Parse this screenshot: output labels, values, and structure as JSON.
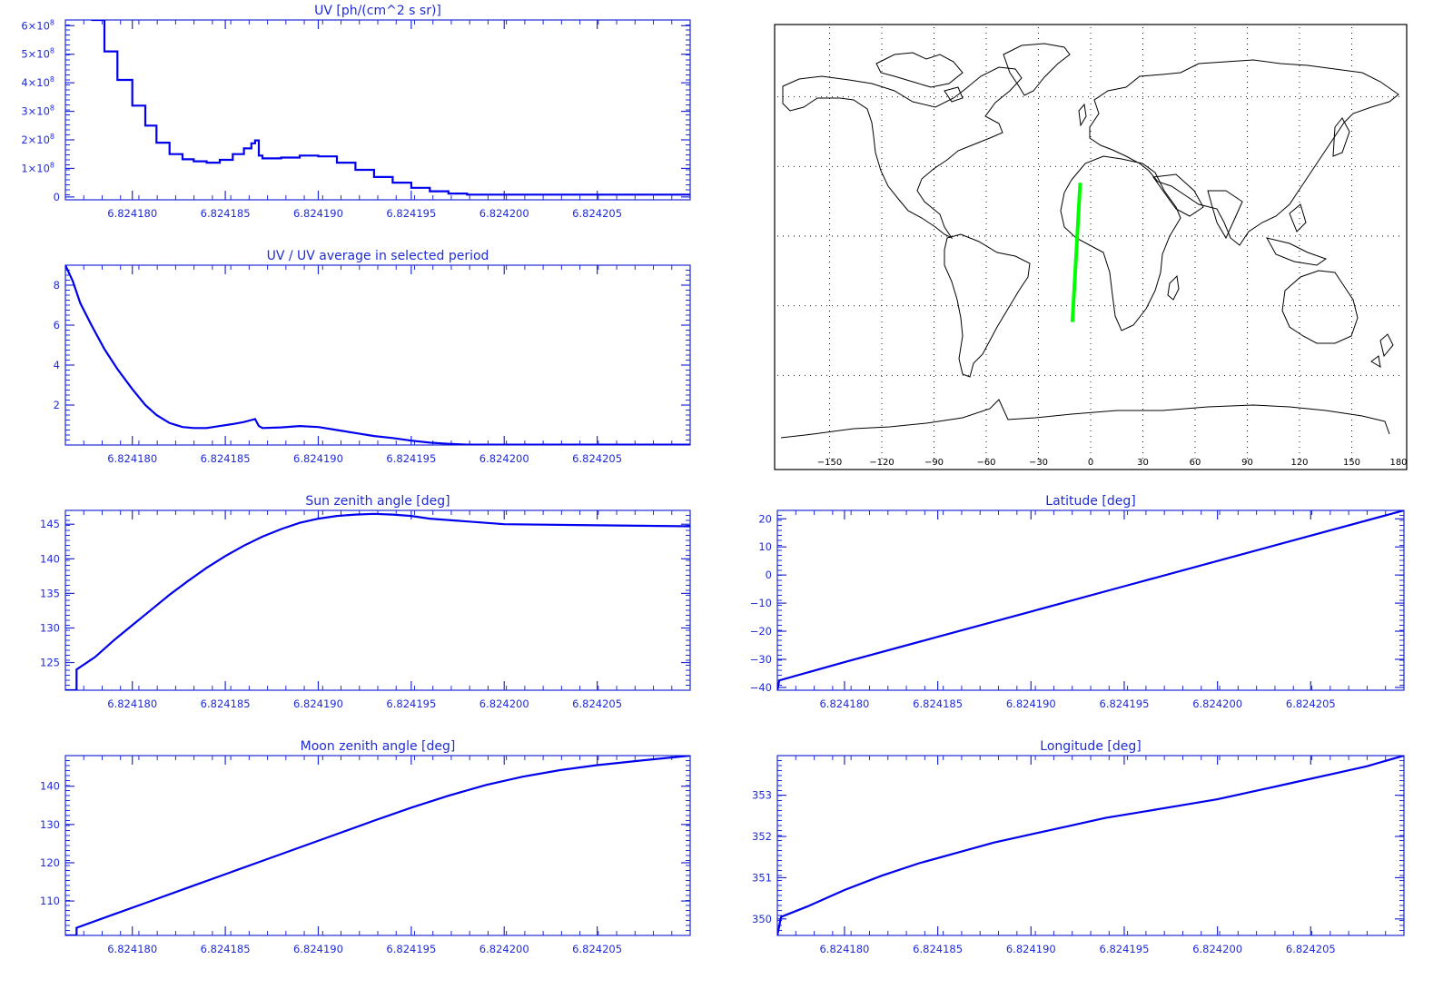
{
  "colors": {
    "axis": "#1f2bd8",
    "line": "#0000ee",
    "track": "#00ff00",
    "coast": "#000000"
  },
  "chart_data": [
    {
      "type": "line",
      "title": "UV [ph/(cm^2 s sr)]",
      "x_ticks": [
        "6.824180",
        "6.824185",
        "6.824190",
        "6.824195",
        "6.824200",
        "6.824205"
      ],
      "xlim": [
        6.8241764,
        6.82421
      ],
      "ylim": [
        -0.1,
        6.2
      ],
      "y_ticks": [
        {
          "v": 0,
          "base": "0"
        },
        {
          "v": 1,
          "base": "1×10",
          "exp": "8"
        },
        {
          "v": 2,
          "base": "2×10",
          "exp": "8"
        },
        {
          "v": 3,
          "base": "3×10",
          "exp": "8"
        },
        {
          "v": 4,
          "base": "4×10",
          "exp": "8"
        },
        {
          "v": 5,
          "base": "5×10",
          "exp": "8"
        },
        {
          "v": 6,
          "base": "6×10",
          "exp": "8"
        }
      ],
      "step": true,
      "points": [
        [
          6.8241778,
          6.2
        ],
        [
          6.8241785,
          5.1
        ],
        [
          6.8241792,
          4.1
        ],
        [
          6.82418,
          3.2
        ],
        [
          6.8241807,
          2.5
        ],
        [
          6.8241813,
          1.9
        ],
        [
          6.824182,
          1.5
        ],
        [
          6.8241827,
          1.32
        ],
        [
          6.8241833,
          1.25
        ],
        [
          6.824184,
          1.2
        ],
        [
          6.8241847,
          1.3
        ],
        [
          6.8241854,
          1.5
        ],
        [
          6.824186,
          1.7
        ],
        [
          6.8241864,
          1.88
        ],
        [
          6.8241866,
          1.98
        ],
        [
          6.8241868,
          1.45
        ],
        [
          6.824187,
          1.35
        ],
        [
          6.824188,
          1.38
        ],
        [
          6.824189,
          1.45
        ],
        [
          6.82419,
          1.42
        ],
        [
          6.824191,
          1.2
        ],
        [
          6.824192,
          0.95
        ],
        [
          6.824193,
          0.7
        ],
        [
          6.824194,
          0.5
        ],
        [
          6.824195,
          0.32
        ],
        [
          6.824196,
          0.2
        ],
        [
          6.824197,
          0.12
        ],
        [
          6.824198,
          0.08
        ],
        [
          6.824199,
          0.08
        ],
        [
          6.8242,
          0.08
        ],
        [
          6.82421,
          0.08
        ]
      ]
    },
    {
      "type": "line",
      "title": "UV / UV average in selected period",
      "x_ticks": [
        "6.824180",
        "6.824185",
        "6.824190",
        "6.824195",
        "6.824200",
        "6.824205"
      ],
      "xlim": [
        6.8241764,
        6.82421
      ],
      "ylim": [
        0,
        9
      ],
      "y_ticks": [
        {
          "v": 2,
          "base": "2"
        },
        {
          "v": 4,
          "base": "4"
        },
        {
          "v": 6,
          "base": "6"
        },
        {
          "v": 8,
          "base": "8"
        }
      ],
      "step": false,
      "points": [
        [
          6.8241764,
          9.0
        ],
        [
          6.8241768,
          8.2
        ],
        [
          6.8241772,
          7.1
        ],
        [
          6.8241778,
          6.0
        ],
        [
          6.8241785,
          4.8
        ],
        [
          6.8241792,
          3.8
        ],
        [
          6.82418,
          2.8
        ],
        [
          6.8241807,
          2.0
        ],
        [
          6.8241813,
          1.5
        ],
        [
          6.824182,
          1.1
        ],
        [
          6.8241827,
          0.9
        ],
        [
          6.8241833,
          0.85
        ],
        [
          6.824184,
          0.85
        ],
        [
          6.8241847,
          0.95
        ],
        [
          6.8241854,
          1.05
        ],
        [
          6.824186,
          1.15
        ],
        [
          6.8241864,
          1.25
        ],
        [
          6.8241866,
          1.3
        ],
        [
          6.8241868,
          0.95
        ],
        [
          6.824187,
          0.85
        ],
        [
          6.824188,
          0.88
        ],
        [
          6.824189,
          0.95
        ],
        [
          6.82419,
          0.9
        ],
        [
          6.824191,
          0.75
        ],
        [
          6.824192,
          0.6
        ],
        [
          6.824193,
          0.45
        ],
        [
          6.824194,
          0.35
        ],
        [
          6.824195,
          0.22
        ],
        [
          6.824196,
          0.12
        ],
        [
          6.824197,
          0.06
        ],
        [
          6.824198,
          0.02
        ],
        [
          6.82421,
          0.02
        ]
      ]
    },
    {
      "type": "line",
      "title": "Sun zenith angle [deg]",
      "x_ticks": [
        "6.824180",
        "6.824185",
        "6.824190",
        "6.824195",
        "6.824200",
        "6.824205"
      ],
      "xlim": [
        6.8241764,
        6.82421
      ],
      "ylim": [
        121,
        147
      ],
      "y_ticks": [
        {
          "v": 125,
          "base": "125"
        },
        {
          "v": 130,
          "base": "130"
        },
        {
          "v": 135,
          "base": "135"
        },
        {
          "v": 140,
          "base": "140"
        },
        {
          "v": 145,
          "base": "145"
        }
      ],
      "step": false,
      "points": [
        [
          6.8241764,
          121.0
        ],
        [
          6.824177,
          121.0
        ],
        [
          6.824177,
          124.0
        ],
        [
          6.824178,
          125.8
        ],
        [
          6.824179,
          128.2
        ],
        [
          6.82418,
          130.4
        ],
        [
          6.824181,
          132.6
        ],
        [
          6.824182,
          134.8
        ],
        [
          6.824183,
          136.8
        ],
        [
          6.824184,
          138.7
        ],
        [
          6.824185,
          140.4
        ],
        [
          6.824186,
          141.9
        ],
        [
          6.824187,
          143.2
        ],
        [
          6.824188,
          144.3
        ],
        [
          6.824189,
          145.2
        ],
        [
          6.82419,
          145.8
        ],
        [
          6.824191,
          146.2
        ],
        [
          6.824192,
          146.4
        ],
        [
          6.824193,
          146.5
        ],
        [
          6.824194,
          146.4
        ],
        [
          6.824195,
          146.2
        ],
        [
          6.824196,
          145.8
        ],
        [
          6.8242,
          145.0
        ],
        [
          6.82421,
          144.7
        ]
      ]
    },
    {
      "type": "line",
      "title": "Latitude [deg]",
      "x_ticks": [
        "6.824180",
        "6.824185",
        "6.824190",
        "6.824195",
        "6.824200",
        "6.824205"
      ],
      "xlim": [
        6.8241764,
        6.82421
      ],
      "ylim": [
        -41,
        23
      ],
      "y_ticks": [
        {
          "v": -40,
          "base": "−40"
        },
        {
          "v": -30,
          "base": "−30"
        },
        {
          "v": -20,
          "base": "−20"
        },
        {
          "v": -10,
          "base": "−10"
        },
        {
          "v": 0,
          "base": "0"
        },
        {
          "v": 10,
          "base": "10"
        },
        {
          "v": 20,
          "base": "20"
        }
      ],
      "step": false,
      "points": [
        [
          6.8241764,
          -41.0
        ],
        [
          6.8241765,
          -37.5
        ],
        [
          6.82418,
          -31.0
        ],
        [
          6.824185,
          -22.0
        ],
        [
          6.82419,
          -13.0
        ],
        [
          6.824195,
          -4.0
        ],
        [
          6.8242,
          5.0
        ],
        [
          6.824205,
          14.0
        ],
        [
          6.82421,
          23.0
        ]
      ]
    },
    {
      "type": "line",
      "title": "Moon zenith angle [deg]",
      "x_ticks": [
        "6.824180",
        "6.824185",
        "6.824190",
        "6.824195",
        "6.824200",
        "6.824205"
      ],
      "xlim": [
        6.8241764,
        6.82421
      ],
      "ylim": [
        101,
        148
      ],
      "y_ticks": [
        {
          "v": 110,
          "base": "110"
        },
        {
          "v": 120,
          "base": "120"
        },
        {
          "v": 130,
          "base": "130"
        },
        {
          "v": 140,
          "base": "140"
        }
      ],
      "step": false,
      "points": [
        [
          6.8241764,
          101.0
        ],
        [
          6.824177,
          101.0
        ],
        [
          6.824177,
          103.0
        ],
        [
          6.824179,
          106.5
        ],
        [
          6.824181,
          110.0
        ],
        [
          6.824183,
          113.5
        ],
        [
          6.824185,
          117.0
        ],
        [
          6.824187,
          120.5
        ],
        [
          6.824189,
          124.0
        ],
        [
          6.824191,
          127.5
        ],
        [
          6.824193,
          131.0
        ],
        [
          6.824195,
          134.4
        ],
        [
          6.824197,
          137.5
        ],
        [
          6.824199,
          140.3
        ],
        [
          6.824201,
          142.5
        ],
        [
          6.824203,
          144.2
        ],
        [
          6.824205,
          145.5
        ],
        [
          6.8242075,
          146.8
        ],
        [
          6.82421,
          148.0
        ]
      ]
    },
    {
      "type": "line",
      "title": "Longitude [deg]",
      "x_ticks": [
        "6.824180",
        "6.824185",
        "6.824190",
        "6.824195",
        "6.824200",
        "6.824205"
      ],
      "xlim": [
        6.8241764,
        6.82421
      ],
      "ylim": [
        349.6,
        353.96
      ],
      "y_ticks": [
        {
          "v": 350,
          "base": "350"
        },
        {
          "v": 351,
          "base": "351"
        },
        {
          "v": 352,
          "base": "352"
        },
        {
          "v": 353,
          "base": "353"
        }
      ],
      "step": false,
      "points": [
        [
          6.8241764,
          349.6
        ],
        [
          6.8241766,
          350.05
        ],
        [
          6.824178,
          350.3
        ],
        [
          6.82418,
          350.7
        ],
        [
          6.824182,
          351.05
        ],
        [
          6.824184,
          351.35
        ],
        [
          6.824186,
          351.6
        ],
        [
          6.824188,
          351.85
        ],
        [
          6.82419,
          352.05
        ],
        [
          6.824192,
          352.25
        ],
        [
          6.824194,
          352.45
        ],
        [
          6.824196,
          352.6
        ],
        [
          6.824198,
          352.75
        ],
        [
          6.8242,
          352.9
        ],
        [
          6.824202,
          353.1
        ],
        [
          6.824204,
          353.3
        ],
        [
          6.824206,
          353.5
        ],
        [
          6.824208,
          353.7
        ],
        [
          6.82421,
          353.96
        ]
      ]
    }
  ],
  "map": {
    "lon_ticks": [
      "−150",
      "−120",
      "−90",
      "−60",
      "−30",
      "0",
      "30",
      "60",
      "90",
      "120",
      "150",
      "180"
    ],
    "track": [
      [
        -10.5,
        -37.0
      ],
      [
        -6.0,
        23.0
      ]
    ]
  }
}
